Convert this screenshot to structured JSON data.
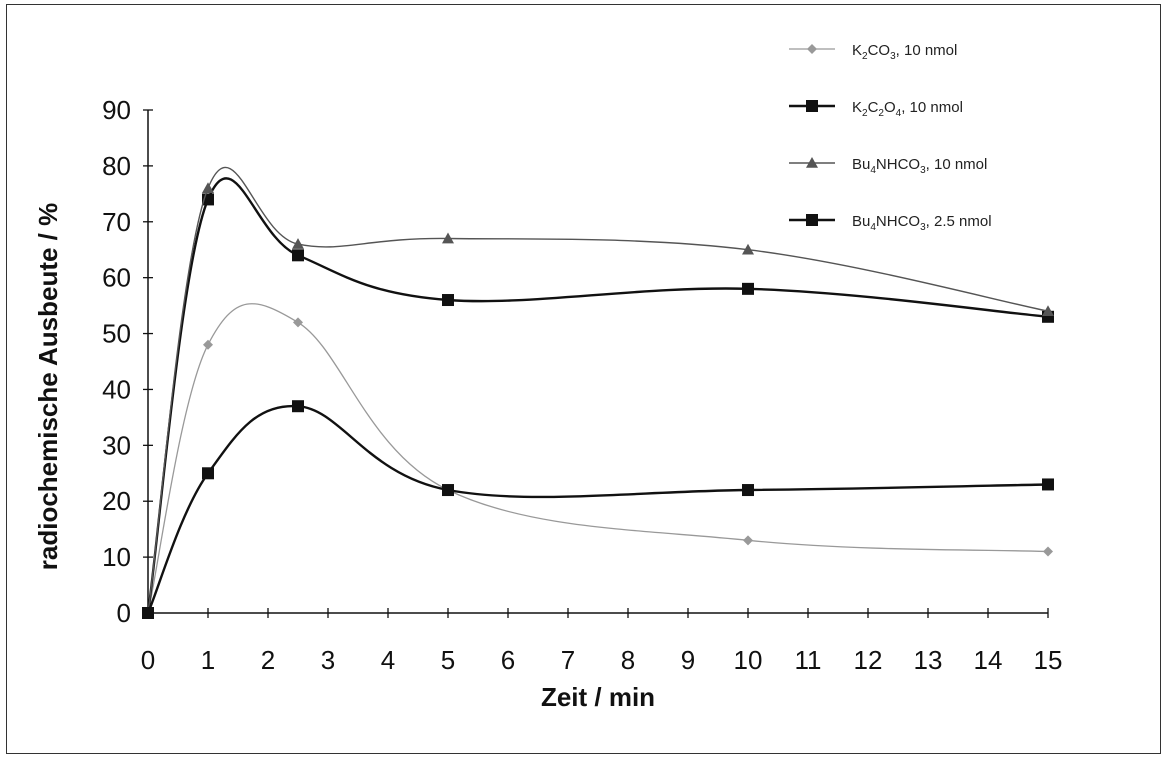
{
  "chart_data": {
    "type": "line",
    "xlabel": "Zeit / min",
    "ylabel": "radiochemische Ausbeute / %",
    "x_tick_labels": [
      "0",
      "1",
      "2",
      "3",
      "4",
      "5",
      "6",
      "7",
      "8",
      "9",
      "10",
      "11",
      "12",
      "13",
      "14",
      "15"
    ],
    "y_tick_labels": [
      "0",
      "10",
      "20",
      "30",
      "40",
      "50",
      "60",
      "70",
      "80",
      "90"
    ],
    "ylim": [
      0,
      90
    ],
    "x_categories": [
      "0",
      "1",
      "2.5",
      "5",
      "10",
      "15"
    ],
    "grid": false,
    "legend_position": "top-right",
    "series": [
      {
        "name": "K2CO3, 10 nmol",
        "legend": [
          {
            "t": "K"
          },
          {
            "t": "2",
            "sub": true
          },
          {
            "t": "CO"
          },
          {
            "t": "3",
            "sub": true
          },
          {
            "t": ", 10 nmol"
          }
        ],
        "marker": "diamond",
        "color": "#999999",
        "line_width": 1.3,
        "x": [
          "0",
          "1",
          "2.5",
          "5",
          "10",
          "15"
        ],
        "y": [
          0,
          48,
          52,
          22,
          13,
          11
        ]
      },
      {
        "name": "K2C2O4, 10 nmol",
        "legend": [
          {
            "t": "K"
          },
          {
            "t": "2",
            "sub": true
          },
          {
            "t": "C"
          },
          {
            "t": "2",
            "sub": true
          },
          {
            "t": "O"
          },
          {
            "t": "4",
            "sub": true
          },
          {
            "t": ", 10 nmol"
          }
        ],
        "marker": "square",
        "color": "#111111",
        "line_width": 2.4,
        "x": [
          "0",
          "1",
          "2.5",
          "5",
          "10",
          "15"
        ],
        "y": [
          0,
          74,
          64,
          56,
          58,
          53
        ]
      },
      {
        "name": "Bu4NHCO3, 10 nmol",
        "legend": [
          {
            "t": "Bu"
          },
          {
            "t": "4",
            "sub": true
          },
          {
            "t": "NHCO"
          },
          {
            "t": "3",
            "sub": true
          },
          {
            "t": ", 10 nmol"
          }
        ],
        "marker": "triangle",
        "color": "#555555",
        "line_width": 1.4,
        "x": [
          "0",
          "1",
          "2.5",
          "5",
          "10",
          "15"
        ],
        "y": [
          0,
          76,
          66,
          67,
          65,
          54
        ]
      },
      {
        "name": "Bu4NHCO3, 2.5 nmol",
        "legend": [
          {
            "t": "Bu"
          },
          {
            "t": "4",
            "sub": true
          },
          {
            "t": "NHCO"
          },
          {
            "t": "3",
            "sub": true
          },
          {
            "t": ", 2.5 nmol"
          }
        ],
        "marker": "square",
        "color": "#111111",
        "line_width": 2.4,
        "x": [
          "0",
          "1",
          "2.5",
          "5",
          "10",
          "15"
        ],
        "y": [
          0,
          25,
          37,
          22,
          22,
          23
        ]
      }
    ]
  }
}
